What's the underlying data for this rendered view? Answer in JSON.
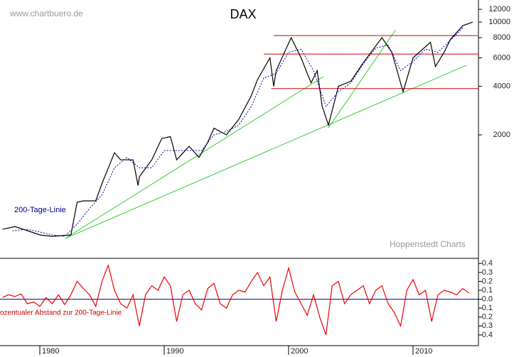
{
  "chart_data": [
    {
      "type": "line",
      "title": "DAX",
      "log_scale": true,
      "annotations": [
        "www.chartbuero.de",
        "Hoppenstedt Charts"
      ],
      "xlim": [
        1976.8,
        2015.26
      ],
      "ylim": [
        347,
        13700
      ],
      "yticks": [
        2000,
        4000,
        6000,
        8000,
        10000,
        12000
      ],
      "series": [
        {
          "color": "#000000",
          "x": [
            1977,
            1978,
            1979,
            1980,
            1981,
            1982.5,
            1983,
            1983.5,
            1984.5,
            1985,
            1986,
            1986.5,
            1987.5,
            1987.9,
            1988,
            1989,
            1989.8,
            1990.5,
            1991,
            1992,
            1992.8,
            1993.5,
            1994,
            1995,
            1996,
            1997,
            1997.5,
            1998.5,
            1998.8,
            1999,
            2000.2,
            2001,
            2001.8,
            2002.3,
            2002.7,
            2003.2,
            2004,
            2005,
            2006,
            2007.5,
            2008.3,
            2009.2,
            2010,
            2011.4,
            2011.8,
            2012.5,
            2013,
            2014,
            2014.8
          ],
          "values": [
            520,
            540,
            510,
            480,
            470,
            480,
            765,
            780,
            780,
            1000,
            1550,
            1400,
            1400,
            970,
            1100,
            1400,
            1900,
            1950,
            1400,
            1700,
            1450,
            1800,
            2200,
            2000,
            2500,
            3500,
            4400,
            6000,
            4000,
            5000,
            8000,
            6000,
            4200,
            5000,
            3000,
            2300,
            4000,
            4300,
            5600,
            8000,
            6500,
            3700,
            6000,
            7500,
            5300,
            6500,
            7800,
            9500,
            10000
          ]
        },
        {
          "name": "200-Tage-Linie",
          "color": "#0000aa",
          "dashed": true,
          "x": [
            1977.8,
            1979,
            1980,
            1981,
            1982,
            1983,
            1984,
            1985,
            1986,
            1987,
            1988,
            1989,
            1990,
            1991,
            1992,
            1993,
            1994,
            1995,
            1996,
            1997,
            1998,
            1999,
            2000,
            2001,
            2002,
            2003,
            2004,
            2005,
            2006,
            2007,
            2008,
            2009,
            2010,
            2011,
            2012,
            2013,
            2014
          ],
          "values": [
            510,
            520,
            500,
            480,
            470,
            560,
            700,
            850,
            1250,
            1450,
            1250,
            1250,
            1600,
            1600,
            1600,
            1600,
            2000,
            2100,
            2300,
            3000,
            4500,
            4800,
            6500,
            6800,
            5000,
            3000,
            3700,
            4200,
            5500,
            6900,
            7200,
            5000,
            5700,
            6800,
            6500,
            7700,
            9200
          ]
        }
      ],
      "trend_lines": [
        {
          "color": "#33cc33",
          "x": [
            1982.06,
            2002.8
          ],
          "values": [
            457,
            4590
          ]
        },
        {
          "color": "#33cc33",
          "x": [
            1982.06,
            2014.3
          ],
          "values": [
            457,
            5400
          ]
        },
        {
          "color": "#33cc33",
          "x": [
            2003.2,
            2008.6
          ],
          "values": [
            2210,
            8950
          ]
        },
        {
          "color": "#cc0000",
          "x": [
            1998.8,
            2015.26
          ],
          "values": [
            8250,
            8250
          ]
        },
        {
          "color": "#cc0000",
          "x": [
            1998.0,
            2015.26
          ],
          "values": [
            6340,
            6340
          ]
        },
        {
          "color": "#cc0000",
          "x": [
            1998.6,
            2015.26
          ],
          "values": [
            3870,
            3870
          ]
        }
      ]
    },
    {
      "type": "line",
      "xlim": [
        1976.8,
        2015.26
      ],
      "ylim": [
        -0.52,
        0.45
      ],
      "xticks": [
        1980,
        1990,
        2000,
        2010
      ],
      "yticks": [
        -0.4,
        -0.3,
        -0.2,
        -0.1,
        {
          "value": 0,
          "label": "0.0"
        },
        0.1,
        0.2,
        0.3,
        0.4
      ],
      "zero_line_color": "#000088",
      "series": [
        {
          "name": "ozentualer Abstand zur 200-Tage-Linie",
          "color": "#ee0000",
          "x": [
            1977,
            1977.5,
            1978,
            1978.5,
            1979,
            1979.5,
            1980,
            1980.5,
            1981,
            1981.5,
            1982,
            1982.5,
            1983,
            1983.5,
            1984,
            1984.5,
            1985,
            1985.5,
            1986,
            1986.5,
            1987,
            1987.5,
            1988,
            1988.5,
            1989,
            1989.5,
            1990,
            1990.5,
            1991,
            1991.5,
            1992,
            1992.5,
            1993,
            1993.5,
            1994,
            1994.5,
            1995,
            1995.5,
            1996,
            1996.5,
            1997,
            1997.5,
            1998,
            1998.5,
            1999,
            1999.5,
            2000,
            2000.5,
            2001,
            2001.5,
            2002,
            2002.5,
            2003,
            2003.5,
            2004,
            2004.5,
            2005,
            2005.5,
            2006,
            2006.5,
            2007,
            2007.5,
            2008,
            2008.5,
            2009,
            2009.5,
            2010,
            2010.5,
            2011,
            2011.5,
            2012,
            2012.5,
            2013,
            2013.5,
            2014,
            2014.5
          ],
          "values": [
            0.02,
            0.05,
            0.03,
            0.06,
            -0.05,
            -0.03,
            -0.08,
            0.02,
            -0.05,
            0.05,
            -0.06,
            0.05,
            0.2,
            0.12,
            0.05,
            -0.08,
            0.2,
            0.38,
            0.1,
            -0.05,
            -0.1,
            0.05,
            -0.3,
            0.05,
            0.15,
            0.1,
            0.25,
            0.15,
            -0.25,
            0.05,
            0.1,
            -0.05,
            -0.12,
            0.12,
            0.18,
            -0.05,
            -0.1,
            0.05,
            0.1,
            0.08,
            0.2,
            0.3,
            0.15,
            0.25,
            -0.25,
            0.1,
            0.35,
            0.08,
            -0.05,
            -0.18,
            0.05,
            -0.2,
            -0.4,
            0.15,
            0.2,
            -0.05,
            0.05,
            0.1,
            0.15,
            -0.05,
            0.1,
            0.15,
            -0.05,
            -0.15,
            -0.3,
            0.1,
            0.22,
            0.05,
            0.1,
            -0.25,
            0.05,
            0.1,
            0.08,
            0.05,
            0.12,
            0.07
          ]
        }
      ]
    }
  ]
}
